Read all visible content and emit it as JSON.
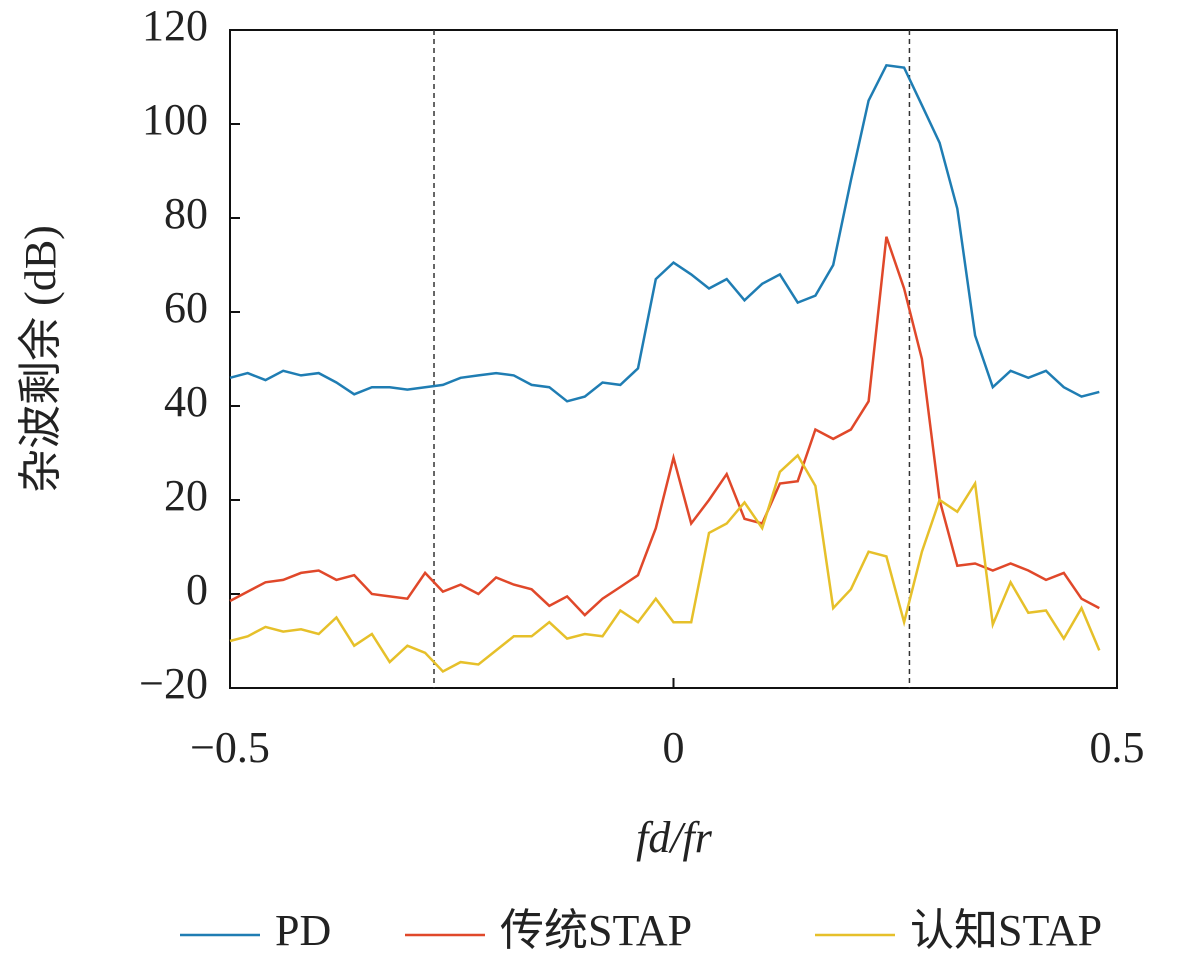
{
  "chart_data": {
    "type": "line",
    "ylabel": "杂波剩余 (dB)",
    "xlabel": "fd/fr",
    "xlim": [
      -0.5,
      0.5
    ],
    "ylim": [
      -20,
      120
    ],
    "xticks": [
      {
        "value": -0.5,
        "label": "−0.5"
      },
      0,
      0.5
    ],
    "yticks": [
      {
        "value": -20,
        "label": "−20"
      },
      0,
      20,
      40,
      60,
      80,
      100,
      120
    ],
    "vlines": [
      -0.27,
      0.266
    ],
    "legend": "bottom",
    "x": [
      -0.5,
      -0.48,
      -0.46,
      -0.44,
      -0.42,
      -0.4,
      -0.38,
      -0.36,
      -0.34,
      -0.32,
      -0.3,
      -0.28,
      -0.26,
      -0.24,
      -0.22,
      -0.2,
      -0.18,
      -0.16,
      -0.14,
      -0.12,
      -0.1,
      -0.08,
      -0.06,
      -0.04,
      -0.02,
      0,
      0.02,
      0.04,
      0.06,
      0.08,
      0.1,
      0.12,
      0.14,
      0.16,
      0.18,
      0.2,
      0.22,
      0.24,
      0.26,
      0.28,
      0.3,
      0.32,
      0.34,
      0.36,
      0.38,
      0.4,
      0.42,
      0.44,
      0.46,
      0.48
    ],
    "series": [
      {
        "name": "PD",
        "color": "#1f7db3",
        "values": [
          46,
          47,
          45.5,
          47.5,
          46.5,
          47,
          45,
          42.5,
          44,
          44,
          43.5,
          44,
          44.5,
          46,
          46.5,
          47,
          46.5,
          44.5,
          44,
          41,
          42,
          45,
          44.5,
          48,
          67,
          70.5,
          68,
          65,
          67,
          62.5,
          66,
          68,
          62,
          63.5,
          70,
          88,
          105,
          112.5,
          112,
          104,
          96,
          82,
          55,
          44,
          47.5,
          46,
          47.5,
          44,
          42,
          43
        ]
      },
      {
        "name": "传统STAP",
        "color": "#e0482a",
        "values": [
          -1.5,
          0.5,
          2.5,
          3,
          4.5,
          5,
          3,
          4,
          0,
          -0.5,
          -1,
          4.5,
          0.5,
          2,
          0,
          3.5,
          2,
          1,
          -2.5,
          -0.5,
          -4.5,
          -1,
          1.5,
          4,
          14,
          29,
          15,
          20,
          25.5,
          16,
          15,
          23.5,
          24,
          35,
          33,
          35,
          41,
          76,
          65,
          50,
          20,
          6,
          6.5,
          5,
          6.5,
          5,
          3,
          4.5,
          -1,
          -3
        ]
      },
      {
        "name": "认知STAP",
        "color": "#e6c02a",
        "values": [
          -10,
          -9,
          -7,
          -8,
          -7.5,
          -8.5,
          -5,
          -11,
          -8.5,
          -14.5,
          -11,
          -12.5,
          -16.5,
          -14.5,
          -15,
          -12,
          -9,
          -9,
          -6,
          -9.5,
          -8.5,
          -9,
          -3.5,
          -6,
          -1,
          -6,
          -6,
          13,
          15,
          19.5,
          14,
          26,
          29.5,
          23,
          -3,
          1,
          9,
          8,
          -6,
          9,
          20,
          17.5,
          23.5,
          -6.5,
          2.5,
          -4,
          -3.5,
          -9.5,
          -3,
          -12
        ]
      }
    ]
  }
}
